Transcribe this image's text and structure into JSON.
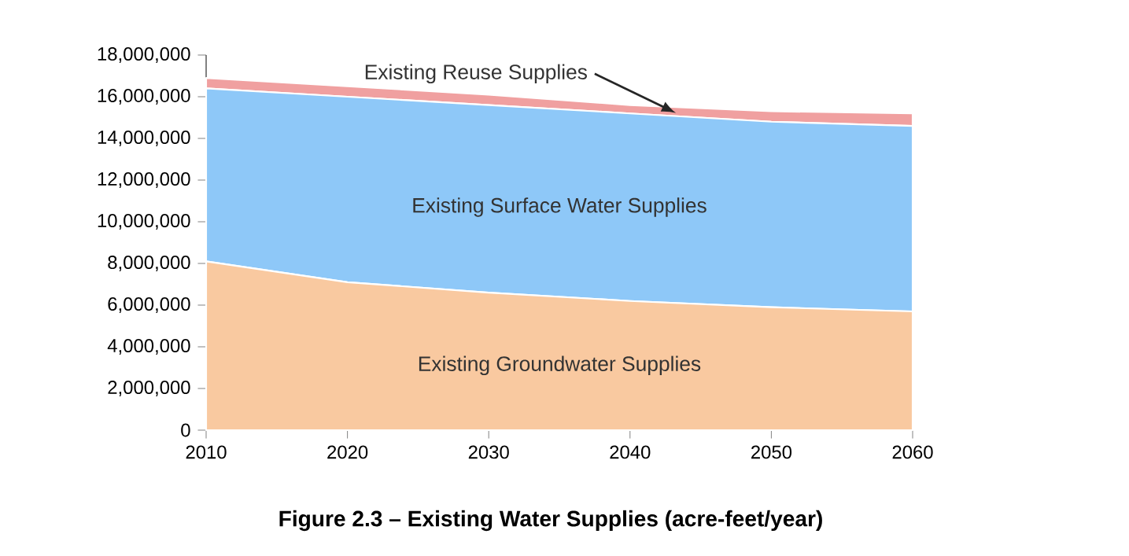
{
  "chart_data": {
    "type": "area",
    "stacked": true,
    "title": "**Figure 2.3 – Existing Water Supplies (acre-feet/year)**",
    "x": [
      2010,
      2020,
      2030,
      2040,
      2050,
      2060
    ],
    "series": [
      {
        "name": "Existing Groundwater Supplies",
        "color": "#f9c9a0",
        "values": [
          8100000,
          7100000,
          6600000,
          6200000,
          5900000,
          5700000
        ]
      },
      {
        "name": "Existing Surface Water Supplies",
        "color": "#8ec8f8",
        "values": [
          8300000,
          8900000,
          9000000,
          9000000,
          8900000,
          8900000
        ]
      },
      {
        "name": "Existing Reuse Supplies",
        "color": "#f0a0a0",
        "values": [
          500000,
          500000,
          500000,
          400000,
          500000,
          600000
        ]
      }
    ],
    "xlim": [
      2010,
      2060
    ],
    "xticks": [
      2010,
      2020,
      2030,
      2040,
      2050,
      2060
    ],
    "ylim": [
      0,
      18000000
    ],
    "yticks": [
      0,
      {
        "value": 2000000,
        "label": "2,000,000"
      },
      {
        "value": 4000000,
        "label": "4,000,000"
      },
      {
        "value": 6000000,
        "label": "6,000,000"
      },
      {
        "value": 8000000,
        "label": "8,000,000"
      },
      {
        "value": 10000000,
        "label": "10,000,000"
      },
      {
        "value": 12000000,
        "label": "12,000,000"
      },
      {
        "value": 14000000,
        "label": "14,000,000"
      },
      {
        "value": 16000000,
        "label": "16,000,000"
      },
      {
        "value": 18000000,
        "label": "18,000,000"
      }
    ],
    "grid": false,
    "legend": false
  }
}
